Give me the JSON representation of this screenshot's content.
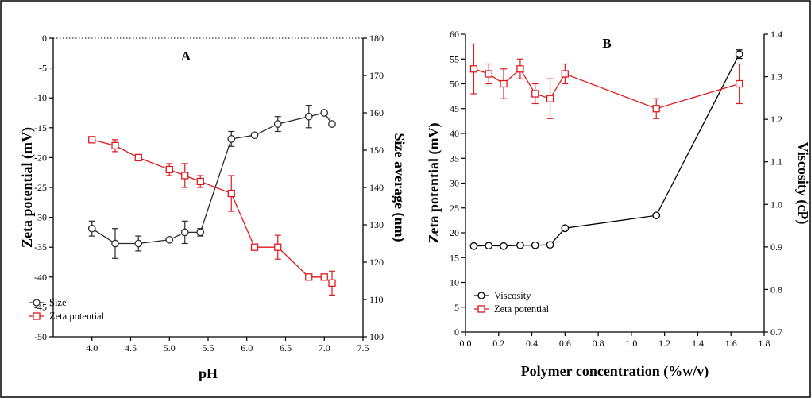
{
  "colors": {
    "size": "#2b2b2b",
    "zeta_a": "#e0191e",
    "viscosity": "#000000",
    "zeta_b": "#e0191e"
  },
  "chart_data": [
    {
      "type": "line",
      "panel_label": "A",
      "xlabel": "pH",
      "ylabel_left": "Zeta potential (mV)",
      "ylabel_right": "Size average (nm)",
      "xlim": [
        3.5,
        7.5
      ],
      "xticks": [
        4.0,
        4.5,
        5.0,
        5.5,
        6.0,
        6.5,
        7.0,
        7.5
      ],
      "ylim_left": [
        -50,
        0
      ],
      "yticks_left": [
        0,
        -5,
        -10,
        -15,
        -20,
        -25,
        -30,
        -35,
        -40,
        -45,
        -50
      ],
      "ylim_right": [
        100,
        180
      ],
      "yticks_right": [
        180,
        170,
        160,
        150,
        140,
        130,
        120,
        110,
        100
      ],
      "legend_position": "bottom-left",
      "zero_line": "dotted",
      "series": [
        {
          "name": "Size",
          "axis": "right",
          "marker": "circle",
          "color": "#2b2b2b",
          "x": [
            4.0,
            4.3,
            4.6,
            5.0,
            5.2,
            5.4,
            5.8,
            6.1,
            6.4,
            6.8,
            7.0,
            7.1
          ],
          "y": [
            129,
            125,
            125,
            126,
            128,
            128,
            153,
            154,
            157,
            159,
            160,
            157
          ],
          "err": [
            2,
            4,
            2,
            0,
            3,
            1,
            2,
            0,
            2,
            3,
            0,
            0
          ]
        },
        {
          "name": "Zeta potential",
          "axis": "left",
          "marker": "square",
          "color": "#e0191e",
          "x": [
            4.0,
            4.3,
            4.6,
            5.0,
            5.2,
            5.4,
            5.8,
            6.1,
            6.4,
            6.8,
            7.0,
            7.1
          ],
          "y": [
            -17,
            -18,
            -20,
            -22,
            -23,
            -24,
            -26,
            -35,
            -35,
            -40,
            -40,
            -41
          ],
          "err": [
            0,
            1,
            0,
            1,
            2,
            1,
            3,
            0,
            2,
            0,
            0,
            2
          ]
        }
      ]
    },
    {
      "type": "line",
      "panel_label": "B",
      "xlabel": "Polymer concentration (%w/v)",
      "ylabel_left": "Zeta potential (mV)",
      "ylabel_right": "Viscosity (cP)",
      "xlim": [
        0.0,
        1.8
      ],
      "xticks": [
        0.0,
        0.2,
        0.4,
        0.6,
        0.8,
        1.0,
        1.2,
        1.4,
        1.6,
        1.8
      ],
      "ylim_left": [
        0,
        60
      ],
      "yticks_left": [
        60,
        55,
        50,
        45,
        40,
        35,
        30,
        25,
        20,
        15,
        10,
        5,
        0
      ],
      "ylim_right": [
        0.7,
        1.4
      ],
      "yticks_right": [
        1.4,
        1.3,
        1.2,
        1.1,
        1.0,
        0.9,
        0.8,
        0.7
      ],
      "legend_position": "bottom-left",
      "series": [
        {
          "name": "Viscosity",
          "axis": "right",
          "marker": "circle",
          "color": "#000000",
          "x": [
            0.05,
            0.14,
            0.23,
            0.33,
            0.42,
            0.51,
            0.6,
            1.15,
            1.65
          ],
          "y": [
            0.902,
            0.903,
            0.902,
            0.904,
            0.904,
            0.905,
            0.944,
            0.974,
            1.353
          ],
          "err": [
            0,
            0,
            0,
            0,
            0,
            0,
            0,
            0,
            0.01
          ]
        },
        {
          "name": "Zeta potential",
          "axis": "left",
          "marker": "square",
          "color": "#e0191e",
          "x": [
            0.05,
            0.14,
            0.23,
            0.33,
            0.42,
            0.51,
            0.6,
            1.15,
            1.65
          ],
          "y": [
            53,
            52,
            50,
            53,
            48,
            47,
            52,
            45,
            50
          ],
          "err": [
            5,
            2,
            3,
            2,
            2,
            4,
            2,
            2,
            4
          ]
        }
      ]
    }
  ]
}
